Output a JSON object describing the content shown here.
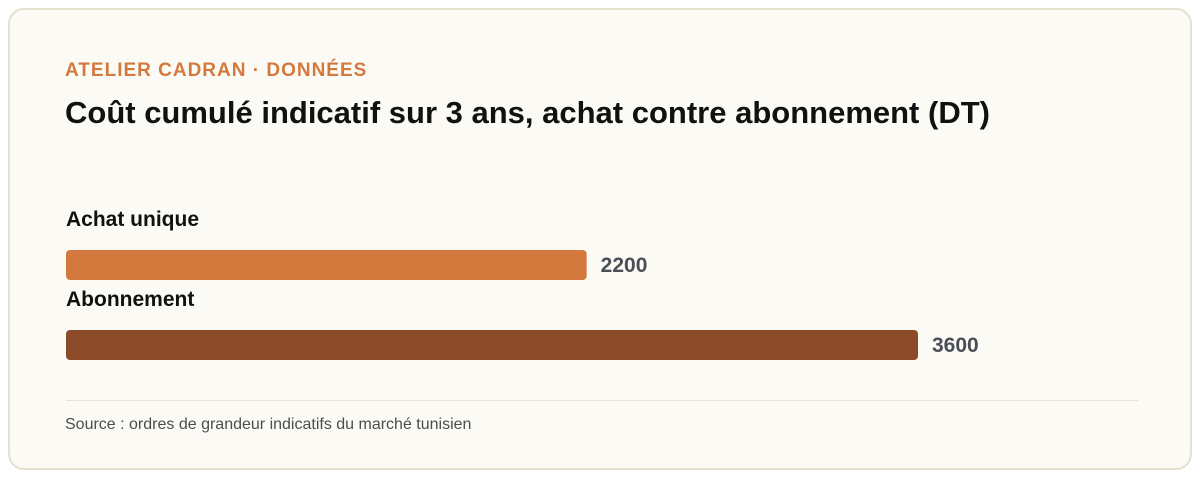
{
  "header": {
    "eyebrow": "ATELIER CADRAN · DONNÉES",
    "title": "Coût cumulé indicatif sur 3 ans, achat contre abonnement (DT)"
  },
  "chart_data": {
    "type": "bar",
    "orientation": "horizontal",
    "categories": [
      "Achat unique",
      "Abonnement"
    ],
    "values": [
      2200,
      3600
    ],
    "colors": [
      "#d4793e",
      "#8b4a28"
    ],
    "value_labels": [
      "2200",
      "3600"
    ],
    "xlim": [
      0,
      3600
    ],
    "grid": false
  },
  "footer": {
    "source": "Source : ordres de grandeur indicatifs du marché tunisien"
  }
}
